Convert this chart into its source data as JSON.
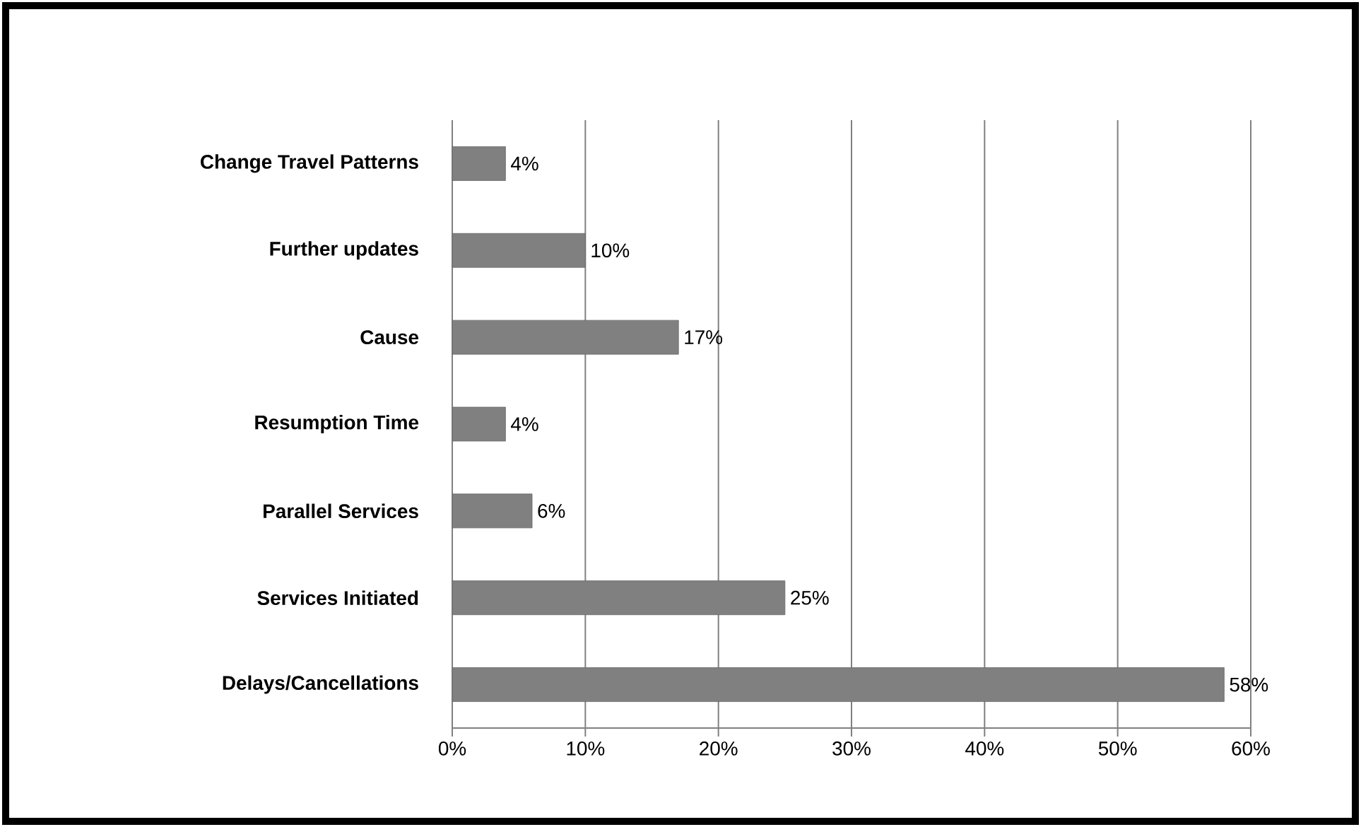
{
  "chart_data": {
    "type": "bar",
    "orientation": "horizontal",
    "categories": [
      "Change Travel Patterns",
      "Further updates",
      "Cause",
      "Resumption Time",
      "Parallel Services",
      "Services Initiated",
      "Delays/Cancellations"
    ],
    "values": [
      4,
      10,
      17,
      4,
      6,
      25,
      58
    ],
    "value_labels": [
      "4%",
      "10%",
      "17%",
      "4%",
      "6%",
      "25%",
      "58%"
    ],
    "color": "#808080",
    "xlim": [
      0,
      60
    ],
    "xticks": [
      {
        "value": 0,
        "label": "0%"
      },
      {
        "value": 10,
        "label": "10%"
      },
      {
        "value": 20,
        "label": "20%"
      },
      {
        "value": 30,
        "label": "30%"
      },
      {
        "value": 40,
        "label": "40%"
      },
      {
        "value": 50,
        "label": "50%"
      },
      {
        "value": 60,
        "label": "60%"
      }
    ],
    "grid": "x"
  }
}
